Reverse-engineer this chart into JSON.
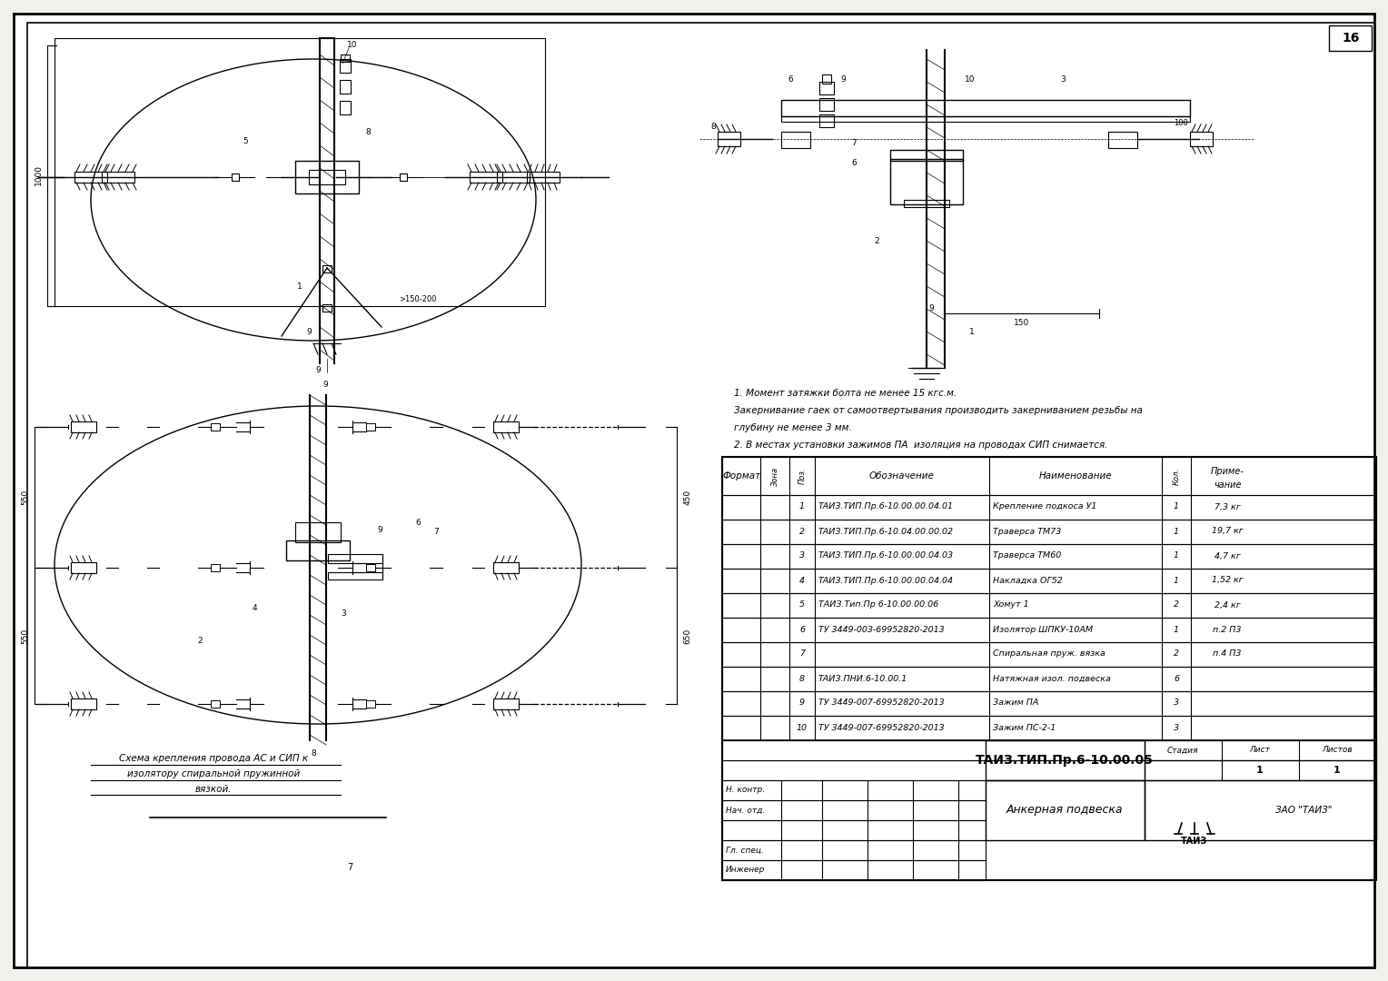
{
  "page_bg": "#f0f0ec",
  "title_block": {
    "drawing_number": "ТАИЗ.ТИП.Пр.6-10.00.05",
    "title": "Анкерная подвеска",
    "company": "ЗАО \"ТАИЗ\"",
    "sheet": "1",
    "sheets": "1",
    "stage": "Стадия",
    "sheet_label": "Лист",
    "sheets_label": "Листов",
    "page_num": "16"
  },
  "notes": [
    "1. Момент затяжки болта не менее 15 кгс.м.",
    "Закернивание гаек от самоотвертывания производить закерниванием резьбы на",
    "глубину не менее 3 мм.",
    "2. В местах установки зажимов ПА  изоляция на проводах СИП снимается."
  ],
  "table_headers": [
    "Формат",
    "Зона",
    "Поз.",
    "Обозначение",
    "Наименование",
    "Кол.",
    "Приме-\nчание"
  ],
  "table_rows": [
    [
      "",
      "",
      "1",
      "ТАИЗ.ТИП.Пр.6-10.00.00.04.01",
      "Крепление подкоса У1",
      "1",
      "7,3 кг"
    ],
    [
      "",
      "",
      "2",
      "ТАИЗ.ТИП.Пр.6-10.04.00.00.02",
      "Траверса ТМ73",
      "1",
      "19,7 кг"
    ],
    [
      "",
      "",
      "3",
      "ТАИЗ.ТИП.Пр.6-10.00.00.04.03",
      "Траверса ТМ60",
      "1",
      "4,7 кг"
    ],
    [
      "",
      "",
      "4",
      "ТАИЗ.ТИП.Пр.6-10.00.00.04.04",
      "Накладка ОГ52",
      "1",
      "1,52 кг"
    ],
    [
      "",
      "",
      "5",
      "ТАИЗ.Тип.Пр 6-10.00.00.06",
      "Хомут 1",
      "2",
      "2,4 кг"
    ],
    [
      "",
      "",
      "6",
      "ТУ 3449-003-69952820-2013",
      "Изолятор ШПКУ-10АМ",
      "1",
      "п.2 П3"
    ],
    [
      "",
      "",
      "7",
      "",
      "Спиральная пруж. вязка",
      "2",
      "п.4 П3"
    ],
    [
      "",
      "",
      "8",
      "ТАИЗ.ПНИ.6-10.00.1",
      "Натяжная изол. подвеска",
      "6",
      ""
    ],
    [
      "",
      "",
      "9",
      "ТУ 3449-007-69952820-2013",
      "Зажим ПА",
      "3",
      ""
    ],
    [
      "",
      "",
      "10",
      "ТУ 3449-007-69952820-2013",
      "Зажим ПС-2-1",
      "3",
      ""
    ]
  ],
  "signature_rows": [
    "Н. контр.",
    "Нач. отд.",
    "",
    "Гл. спец.",
    "Инженер"
  ],
  "view_labels": {
    "schema_caption_line1": "Схема крепления провода АС и СИП к",
    "schema_caption_line2": "изолятору спиральной пружинной",
    "schema_caption_line3": "вязкой."
  }
}
